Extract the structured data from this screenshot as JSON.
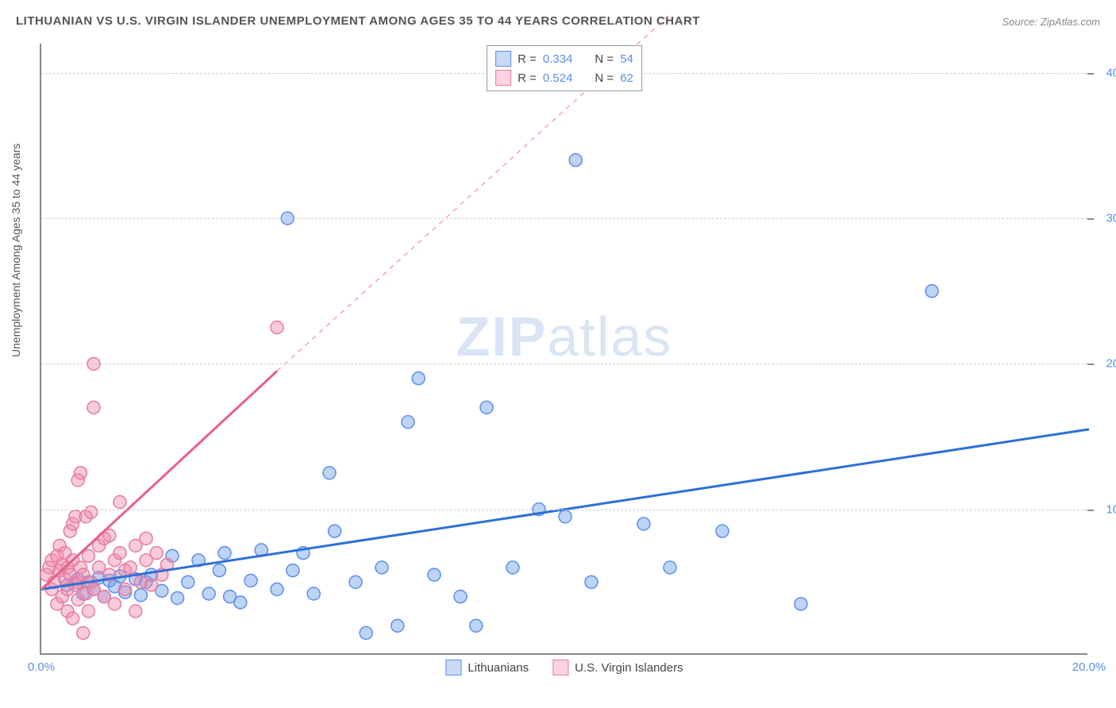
{
  "title": "LITHUANIAN VS U.S. VIRGIN ISLANDER UNEMPLOYMENT AMONG AGES 35 TO 44 YEARS CORRELATION CHART",
  "source": "Source: ZipAtlas.com",
  "ylabel": "Unemployment Among Ages 35 to 44 years",
  "watermark_zip": "ZIP",
  "watermark_atlas": "atlas",
  "chart": {
    "type": "scatter",
    "background_color": "#ffffff",
    "grid_color": "#d0d0d0",
    "axis_color": "#888888",
    "xlim": [
      0,
      20
    ],
    "ylim": [
      0,
      42
    ],
    "xticks": [
      0.0,
      20.0
    ],
    "xtick_labels": [
      "0.0%",
      "20.0%"
    ],
    "yticks": [
      10.0,
      20.0,
      30.0,
      40.0
    ],
    "ytick_labels": [
      "10.0%",
      "20.0%",
      "30.0%",
      "40.0%"
    ],
    "tick_color": "#5b8def",
    "tick_fontsize": 15,
    "label_fontsize": 14,
    "title_fontsize": 15,
    "marker_radius": 8,
    "marker_opacity": 0.5,
    "series": [
      {
        "name": "Lithuanians",
        "color_fill": "rgba(110,160,230,0.45)",
        "color_stroke": "#5b8def",
        "line_color": "#2d6fd8",
        "line_width": 3,
        "trend_start_xy": [
          0,
          4.5
        ],
        "trend_end_xy": [
          20,
          15.5
        ],
        "dashed_continuation": false,
        "R": 0.334,
        "N": 54,
        "points": [
          [
            0.5,
            4.8
          ],
          [
            0.7,
            5.2
          ],
          [
            0.8,
            4.2
          ],
          [
            0.9,
            5.0
          ],
          [
            1.0,
            4.5
          ],
          [
            1.1,
            5.3
          ],
          [
            1.2,
            4.0
          ],
          [
            1.3,
            5.1
          ],
          [
            1.4,
            4.7
          ],
          [
            1.5,
            5.4
          ],
          [
            1.6,
            4.3
          ],
          [
            1.8,
            5.2
          ],
          [
            1.9,
            4.1
          ],
          [
            2.0,
            5.0
          ],
          [
            2.1,
            5.5
          ],
          [
            2.3,
            4.4
          ],
          [
            2.5,
            6.8
          ],
          [
            2.6,
            3.9
          ],
          [
            2.8,
            5.0
          ],
          [
            3.0,
            6.5
          ],
          [
            3.2,
            4.2
          ],
          [
            3.4,
            5.8
          ],
          [
            3.5,
            7.0
          ],
          [
            3.6,
            4.0
          ],
          [
            3.8,
            3.6
          ],
          [
            4.0,
            5.1
          ],
          [
            4.2,
            7.2
          ],
          [
            4.5,
            4.5
          ],
          [
            4.8,
            5.8
          ],
          [
            4.7,
            30.0
          ],
          [
            5.0,
            7.0
          ],
          [
            5.2,
            4.2
          ],
          [
            5.5,
            12.5
          ],
          [
            5.6,
            8.5
          ],
          [
            6.0,
            5.0
          ],
          [
            6.2,
            1.5
          ],
          [
            6.5,
            6.0
          ],
          [
            6.8,
            2.0
          ],
          [
            7.0,
            16.0
          ],
          [
            7.2,
            19.0
          ],
          [
            7.5,
            5.5
          ],
          [
            8.0,
            4.0
          ],
          [
            8.3,
            2.0
          ],
          [
            8.5,
            17.0
          ],
          [
            9.0,
            6.0
          ],
          [
            9.5,
            10.0
          ],
          [
            10.0,
            9.5
          ],
          [
            10.2,
            34.0
          ],
          [
            10.5,
            5.0
          ],
          [
            11.5,
            9.0
          ],
          [
            12.0,
            6.0
          ],
          [
            13.0,
            8.5
          ],
          [
            14.5,
            3.5
          ],
          [
            17.0,
            25.0
          ]
        ]
      },
      {
        "name": "U.S. Virgin Islanders",
        "color_fill": "rgba(240,140,170,0.45)",
        "color_stroke": "#e77aa0",
        "line_color": "#e85f8f",
        "line_width": 3,
        "trend_start_xy": [
          0,
          4.5
        ],
        "trend_end_xy": [
          4.5,
          19.5
        ],
        "dashed_continuation": true,
        "dashed_end_xy": [
          12,
          44
        ],
        "R": 0.524,
        "N": 62,
        "points": [
          [
            0.1,
            5.5
          ],
          [
            0.15,
            6.0
          ],
          [
            0.2,
            4.5
          ],
          [
            0.2,
            6.5
          ],
          [
            0.25,
            5.0
          ],
          [
            0.3,
            6.8
          ],
          [
            0.3,
            3.5
          ],
          [
            0.35,
            5.8
          ],
          [
            0.35,
            7.5
          ],
          [
            0.4,
            4.0
          ],
          [
            0.4,
            6.2
          ],
          [
            0.45,
            5.2
          ],
          [
            0.45,
            7.0
          ],
          [
            0.5,
            4.5
          ],
          [
            0.5,
            6.0
          ],
          [
            0.5,
            3.0
          ],
          [
            0.55,
            5.5
          ],
          [
            0.55,
            8.5
          ],
          [
            0.6,
            6.5
          ],
          [
            0.6,
            2.5
          ],
          [
            0.6,
            9.0
          ],
          [
            0.65,
            4.8
          ],
          [
            0.65,
            9.5
          ],
          [
            0.7,
            5.0
          ],
          [
            0.7,
            12.0
          ],
          [
            0.7,
            3.8
          ],
          [
            0.75,
            6.0
          ],
          [
            0.75,
            12.5
          ],
          [
            0.8,
            5.5
          ],
          [
            0.8,
            1.5
          ],
          [
            0.85,
            4.2
          ],
          [
            0.85,
            9.5
          ],
          [
            0.9,
            6.8
          ],
          [
            0.9,
            3.0
          ],
          [
            0.95,
            5.0
          ],
          [
            0.95,
            9.8
          ],
          [
            1.0,
            4.5
          ],
          [
            1.0,
            17.0
          ],
          [
            1.0,
            20.0
          ],
          [
            1.1,
            6.0
          ],
          [
            1.1,
            7.5
          ],
          [
            1.2,
            8.0
          ],
          [
            1.2,
            4.0
          ],
          [
            1.3,
            5.5
          ],
          [
            1.3,
            8.2
          ],
          [
            1.4,
            6.5
          ],
          [
            1.4,
            3.5
          ],
          [
            1.5,
            7.0
          ],
          [
            1.5,
            10.5
          ],
          [
            1.6,
            5.8
          ],
          [
            1.6,
            4.5
          ],
          [
            1.7,
            6.0
          ],
          [
            1.8,
            7.5
          ],
          [
            1.8,
            3.0
          ],
          [
            1.9,
            5.0
          ],
          [
            2.0,
            8.0
          ],
          [
            2.0,
            6.5
          ],
          [
            2.1,
            4.8
          ],
          [
            2.2,
            7.0
          ],
          [
            2.3,
            5.5
          ],
          [
            2.4,
            6.2
          ],
          [
            4.5,
            22.5
          ]
        ]
      }
    ],
    "legend_top": {
      "rows": [
        {
          "swatch": "blue",
          "r_label": "R =",
          "r_val": "0.334",
          "n_label": "N =",
          "n_val": "54"
        },
        {
          "swatch": "pink",
          "r_label": "R =",
          "r_val": "0.524",
          "n_label": "N =",
          "n_val": "62"
        }
      ]
    },
    "legend_bottom": {
      "items": [
        {
          "swatch": "blue",
          "label": "Lithuanians"
        },
        {
          "swatch": "pink",
          "label": "U.S. Virgin Islanders"
        }
      ]
    }
  }
}
